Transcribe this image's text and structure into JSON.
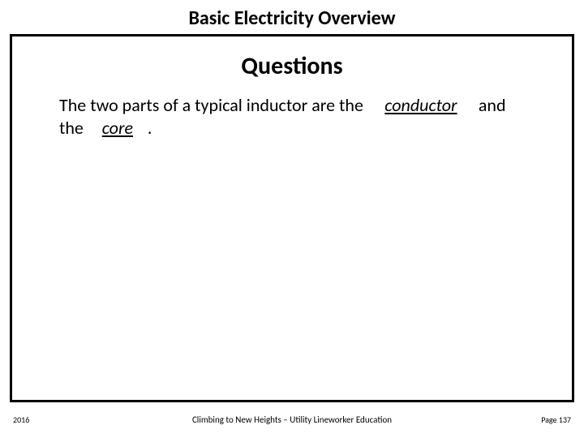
{
  "title": "Basic Electricity Overview",
  "section": "Questions",
  "question": {
    "prefix": "The two parts of a typical inductor are the",
    "blank1": "conductor",
    "mid": " and the ",
    "blank2": "core",
    "suffix": "."
  },
  "footer": {
    "year": "2016",
    "center": "Climbing to New Heights – Utility Lineworker Education",
    "page": "Page 137"
  }
}
